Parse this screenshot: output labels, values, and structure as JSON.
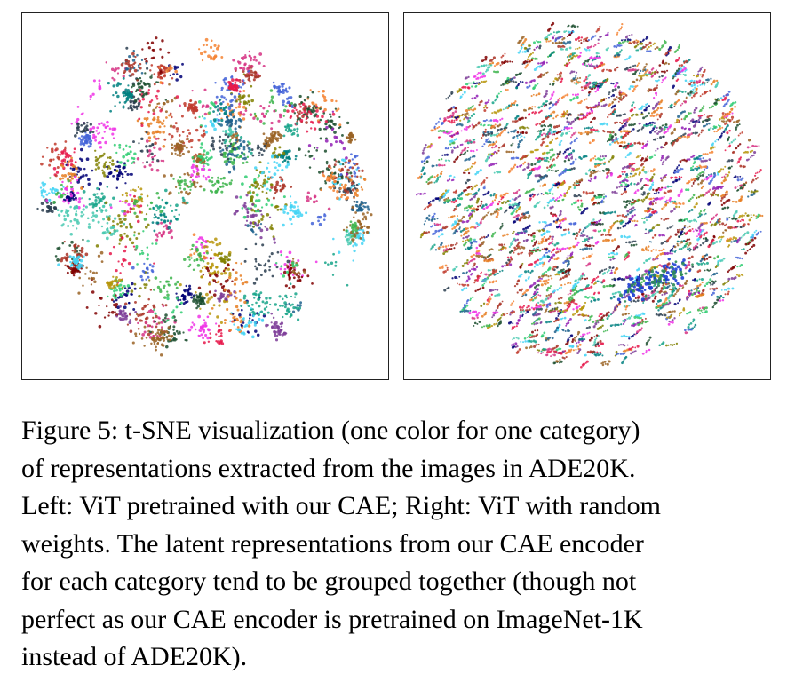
{
  "figure": {
    "label": "Figure 5",
    "palette": [
      "#e6194b",
      "#3cb44b",
      "#4363d8",
      "#f58231",
      "#911eb4",
      "#42d4f4",
      "#f032e6",
      "#808000",
      "#008080",
      "#9a6324",
      "#800000",
      "#000075",
      "#1b4d2e",
      "#d63384",
      "#2ecc71",
      "#17a589",
      "#e67e22",
      "#7d3c98",
      "#1f618d",
      "#c0392b",
      "#b7950b",
      "#2c3e50",
      "#48c9b0",
      "#a93226"
    ],
    "panels": [
      {
        "id": "left",
        "content": "t-SNE scatter of CAE-pretrained ViT representations",
        "style": "clustered"
      },
      {
        "id": "right",
        "content": "t-SNE scatter of random-weight ViT representations",
        "style": "mixed"
      }
    ],
    "caption_lines": [
      "Figure 5: t-SNE visualization (one color for one category)",
      "of representations extracted from the images in ADE20K.",
      "Left: ViT pretrained with our CAE; Right: ViT with random",
      "weights. The latent representations from our CAE encoder",
      "for each category tend to be grouped together (though not",
      "perfect as our CAE encoder is pretrained on ImageNet-1K",
      "instead of ADE20K)."
    ]
  }
}
